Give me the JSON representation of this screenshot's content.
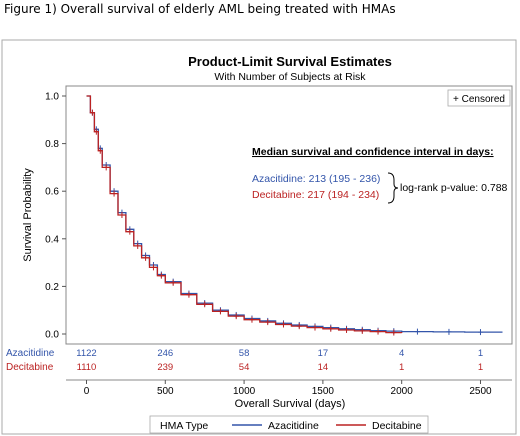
{
  "caption": "Figure 1) Overall survival of elderly AML being treated with HMAs",
  "colors": {
    "azacitidine": "#3355aa",
    "decitabine": "#bb2222",
    "axis": "#555555",
    "frame": "#888888"
  },
  "chart_data": {
    "type": "line",
    "title": "Product-Limit Survival Estimates",
    "subtitle": "With Number of Subjects at Risk",
    "xlabel": "Overall Survival (days)",
    "ylabel": "Survival Probability",
    "xlim": [
      -130,
      2700
    ],
    "ylim": [
      0,
      1.0
    ],
    "x_ticks": [
      "0",
      "500",
      "1000",
      "1500",
      "2000",
      "2500"
    ],
    "x_tick_values": [
      0,
      500,
      1000,
      1500,
      2000,
      2500
    ],
    "y_ticks": [
      "0.0",
      "0.2",
      "0.4",
      "0.6",
      "0.8",
      "1.0"
    ],
    "y_tick_values": [
      0,
      0.2,
      0.4,
      0.6,
      0.8,
      1.0
    ],
    "censored_legend": "+ Censored",
    "annotation": {
      "heading": "Median survival and confidence interval in days:",
      "azacitidine": "Azacitidine: 213 (195 - 236)",
      "decitabine": "Decitabine: 217 (194 - 234)",
      "pvalue": "log-rank p-value: 0.788"
    },
    "series": [
      {
        "name": "Azacitidine",
        "color": "#3355aa",
        "x": [
          0,
          25,
          50,
          75,
          100,
          150,
          200,
          250,
          300,
          350,
          400,
          450,
          500,
          600,
          700,
          800,
          900,
          1000,
          1100,
          1200,
          1300,
          1400,
          1500,
          1600,
          1700,
          1800,
          1900,
          2000,
          2200,
          2400,
          2600
        ],
        "y": [
          1.0,
          0.93,
          0.86,
          0.78,
          0.71,
          0.6,
          0.51,
          0.44,
          0.38,
          0.33,
          0.29,
          0.25,
          0.22,
          0.17,
          0.13,
          0.1,
          0.08,
          0.065,
          0.055,
          0.045,
          0.038,
          0.032,
          0.027,
          0.022,
          0.018,
          0.014,
          0.012,
          0.01,
          0.009,
          0.008,
          0.008
        ],
        "at_risk": [
          "1122",
          "246",
          "58",
          "17",
          "4",
          "1"
        ]
      },
      {
        "name": "Decitabine",
        "color": "#bb2222",
        "x": [
          0,
          25,
          50,
          75,
          100,
          150,
          200,
          250,
          300,
          350,
          400,
          450,
          500,
          600,
          700,
          800,
          900,
          1000,
          1100,
          1200,
          1300,
          1400,
          1500,
          1600,
          1700,
          1800,
          1900,
          2000
        ],
        "y": [
          1.0,
          0.93,
          0.85,
          0.77,
          0.7,
          0.59,
          0.5,
          0.43,
          0.37,
          0.32,
          0.28,
          0.245,
          0.215,
          0.165,
          0.125,
          0.095,
          0.075,
          0.06,
          0.05,
          0.04,
          0.033,
          0.027,
          0.022,
          0.017,
          0.013,
          0.01,
          0.006,
          0.004
        ],
        "at_risk": [
          "1110",
          "239",
          "54",
          "14",
          "1",
          "1"
        ]
      }
    ],
    "legend": {
      "title": "HMA Type",
      "items": [
        "Azacitidine",
        "Decitabine"
      ]
    }
  }
}
